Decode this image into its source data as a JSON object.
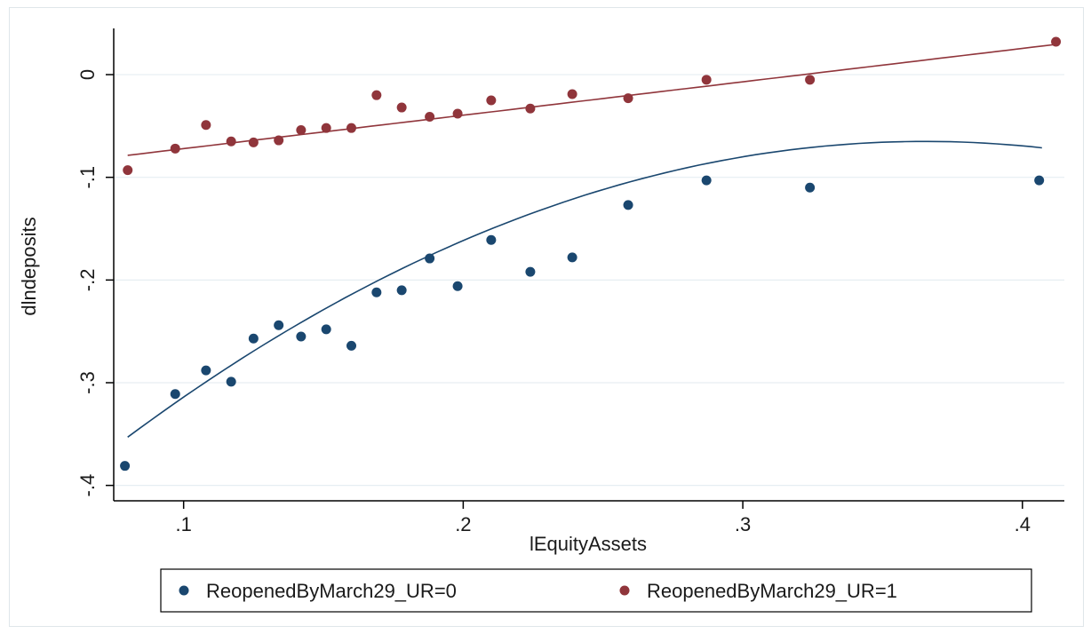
{
  "chart_data": {
    "type": "scatter",
    "xlabel": "lEquityAssets",
    "ylabel": "dlndeposits",
    "xlim": [
      0.075,
      0.415
    ],
    "ylim": [
      -0.415,
      0.045
    ],
    "xticks": [
      0.1,
      0.2,
      0.3,
      0.4
    ],
    "xtick_labels": [
      ".1",
      ".2",
      ".3",
      ".4"
    ],
    "yticks": [
      -0.4,
      -0.3,
      -0.2,
      -0.1,
      0
    ],
    "ytick_labels": [
      "-.4",
      "-.3",
      "-.2",
      "-.1",
      "0"
    ],
    "grid": "horizontal",
    "legend_position": "bottom",
    "series": [
      {
        "name": "ReopenedByMarch29_UR=0",
        "color": "#1a476f",
        "points": [
          [
            0.079,
            -0.381
          ],
          [
            0.097,
            -0.311
          ],
          [
            0.108,
            -0.288
          ],
          [
            0.117,
            -0.299
          ],
          [
            0.125,
            -0.257
          ],
          [
            0.134,
            -0.244
          ],
          [
            0.142,
            -0.255
          ],
          [
            0.151,
            -0.248
          ],
          [
            0.16,
            -0.264
          ],
          [
            0.169,
            -0.212
          ],
          [
            0.178,
            -0.21
          ],
          [
            0.188,
            -0.179
          ],
          [
            0.198,
            -0.206
          ],
          [
            0.21,
            -0.161
          ],
          [
            0.224,
            -0.192
          ],
          [
            0.239,
            -0.178
          ],
          [
            0.259,
            -0.127
          ],
          [
            0.287,
            -0.103
          ],
          [
            0.324,
            -0.11
          ],
          [
            0.406,
            -0.103
          ]
        ],
        "fit": {
          "type": "quadratic",
          "x_range": [
            0.08,
            0.407
          ],
          "coefficients": [
            -0.5373,
            2.5873,
            -3.5437
          ]
        }
      },
      {
        "name": "ReopenedByMarch29_UR=1",
        "color": "#90353b",
        "points": [
          [
            0.08,
            -0.093
          ],
          [
            0.097,
            -0.072
          ],
          [
            0.108,
            -0.049
          ],
          [
            0.117,
            -0.065
          ],
          [
            0.125,
            -0.066
          ],
          [
            0.134,
            -0.064
          ],
          [
            0.142,
            -0.054
          ],
          [
            0.151,
            -0.052
          ],
          [
            0.16,
            -0.052
          ],
          [
            0.169,
            -0.02
          ],
          [
            0.178,
            -0.032
          ],
          [
            0.188,
            -0.041
          ],
          [
            0.198,
            -0.038
          ],
          [
            0.21,
            -0.025
          ],
          [
            0.224,
            -0.033
          ],
          [
            0.239,
            -0.019
          ],
          [
            0.259,
            -0.023
          ],
          [
            0.287,
            -0.005
          ],
          [
            0.324,
            -0.005
          ],
          [
            0.412,
            0.032
          ]
        ],
        "fit": {
          "type": "linear",
          "x_range": [
            0.08,
            0.412
          ],
          "coefficients": [
            -0.1046,
            0.3253
          ]
        }
      }
    ]
  }
}
